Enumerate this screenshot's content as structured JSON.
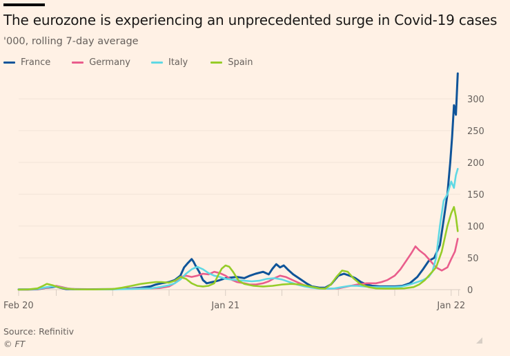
{
  "header": {
    "title": "The eurozone is experiencing an unprecedented surge in Covid-19 cases",
    "subtitle": "'000, rolling 7-day average"
  },
  "footer": {
    "source": "Source: Refinitiv",
    "copyright": "© FT"
  },
  "icons": {
    "resize": "resize-handle-icon"
  },
  "chart_data": {
    "type": "line",
    "title": "The eurozone is experiencing an unprecedented surge in Covid-19 cases",
    "subtitle": "'000, rolling 7-day average",
    "xlabel": "",
    "ylabel": "'000, rolling 7-day average",
    "x_unit": "months since 1 Feb 2020",
    "xlim": [
      0,
      23.4
    ],
    "ylim": [
      0,
      340
    ],
    "y_ticks": [
      0,
      50,
      100,
      150,
      200,
      250,
      300
    ],
    "y_axis_side": "right",
    "grid": true,
    "x_ticks": [
      0,
      2,
      5,
      8,
      11,
      14,
      17,
      20,
      23
    ],
    "x_tick_labels": [
      {
        "at": 0,
        "label": "Feb 20"
      },
      {
        "at": 11,
        "label": "Jan 21"
      },
      {
        "at": 23,
        "label": "Jan 22"
      }
    ],
    "legend_position": "top-left",
    "series": [
      {
        "name": "France",
        "color": "#0f5499",
        "x": [
          0,
          0.5,
          1.0,
          1.5,
          1.8,
          2.0,
          2.2,
          2.5,
          3.0,
          4.0,
          5.0,
          6.0,
          6.5,
          7.0,
          7.3,
          7.6,
          8.0,
          8.3,
          8.6,
          8.8,
          9.0,
          9.2,
          9.3,
          9.4,
          9.6,
          9.8,
          10.0,
          10.3,
          10.6,
          11.0,
          11.3,
          11.6,
          12.0,
          12.3,
          12.6,
          13.0,
          13.3,
          13.5,
          13.7,
          13.9,
          14.1,
          14.3,
          14.6,
          15.0,
          15.3,
          15.6,
          16.0,
          16.3,
          16.6,
          17.0,
          17.3,
          17.6,
          17.9,
          18.2,
          18.5,
          18.8,
          19.2,
          19.6,
          20.0,
          20.4,
          20.8,
          21.2,
          21.5,
          21.8,
          22.1,
          22.4,
          22.6,
          22.8,
          22.95,
          23.05,
          23.15,
          23.25,
          23.35
        ],
        "values": [
          0.2,
          0.3,
          0.5,
          3,
          4,
          5,
          3,
          1,
          0.6,
          0.5,
          0.8,
          2,
          3,
          5,
          8,
          10,
          12,
          15,
          22,
          35,
          42,
          48,
          44,
          38,
          28,
          15,
          10,
          12,
          14,
          18,
          19,
          20,
          18,
          22,
          25,
          28,
          24,
          33,
          40,
          35,
          38,
          32,
          24,
          16,
          10,
          5,
          3,
          3,
          8,
          22,
          25,
          22,
          18,
          12,
          8,
          6,
          5,
          5,
          5,
          6,
          10,
          20,
          32,
          45,
          50,
          70,
          110,
          150,
          200,
          240,
          290,
          275,
          340
        ]
      },
      {
        "name": "Germany",
        "color": "#e95d8c",
        "x": [
          0,
          0.5,
          1.0,
          1.5,
          1.8,
          2.0,
          2.3,
          2.6,
          3.0,
          4.0,
          5.0,
          6.0,
          7.0,
          7.5,
          8.0,
          8.3,
          8.6,
          8.9,
          9.2,
          9.5,
          9.8,
          10.1,
          10.4,
          10.7,
          11.0,
          11.3,
          11.6,
          12.0,
          12.3,
          12.6,
          13.0,
          13.3,
          13.6,
          13.9,
          14.2,
          14.5,
          14.8,
          15.1,
          15.5,
          16.0,
          16.5,
          17.0,
          17.5,
          18.0,
          18.5,
          19.0,
          19.3,
          19.6,
          20.0,
          20.3,
          20.6,
          20.9,
          21.1,
          21.3,
          21.6,
          21.9,
          22.2,
          22.5,
          22.8,
          23.0,
          23.2,
          23.35
        ],
        "values": [
          0.1,
          0.2,
          0.5,
          3,
          5,
          6,
          4,
          2,
          0.8,
          0.5,
          0.8,
          1.5,
          2,
          2.5,
          5,
          10,
          20,
          22,
          20,
          22,
          25,
          24,
          28,
          26,
          22,
          16,
          12,
          10,
          8,
          8,
          10,
          13,
          18,
          22,
          20,
          16,
          12,
          8,
          4,
          2,
          1.5,
          2,
          5,
          8,
          10,
          10,
          12,
          15,
          22,
          32,
          45,
          58,
          68,
          62,
          55,
          45,
          35,
          30,
          35,
          48,
          60,
          80
        ]
      },
      {
        "name": "Italy",
        "color": "#5fd8e4",
        "x": [
          0,
          0.5,
          1.0,
          1.5,
          1.8,
          2.0,
          2.3,
          2.6,
          3.0,
          4.0,
          5.0,
          6.0,
          7.0,
          7.5,
          8.0,
          8.3,
          8.6,
          8.9,
          9.2,
          9.5,
          9.8,
          10.1,
          10.4,
          10.7,
          11.0,
          11.3,
          11.6,
          12.0,
          12.4,
          12.8,
          13.2,
          13.6,
          14.0,
          14.4,
          14.8,
          15.2,
          15.6,
          16.0,
          16.4,
          16.8,
          17.2,
          17.6,
          18.0,
          18.4,
          18.8,
          19.2,
          19.6,
          20.0,
          20.4,
          20.8,
          21.2,
          21.5,
          21.8,
          22.0,
          22.2,
          22.4,
          22.6,
          22.8,
          23.0,
          23.15,
          23.25,
          23.35
        ],
        "values": [
          0.1,
          0.3,
          1,
          4,
          5,
          5,
          3,
          1.5,
          0.5,
          0.3,
          0.4,
          1,
          2,
          4,
          7,
          10,
          16,
          25,
          32,
          36,
          32,
          26,
          22,
          20,
          17,
          16,
          15,
          14,
          13,
          14,
          17,
          18,
          16,
          12,
          8,
          5,
          3,
          1.5,
          1.5,
          2,
          4,
          6,
          6,
          5,
          4,
          4,
          4,
          4,
          5,
          8,
          12,
          15,
          20,
          28,
          50,
          100,
          140,
          150,
          170,
          160,
          180,
          190
        ]
      },
      {
        "name": "Spain",
        "color": "#96cc28",
        "x": [
          0,
          0.5,
          1.0,
          1.3,
          1.5,
          1.8,
          2.1,
          2.5,
          3.0,
          4.0,
          5.0,
          5.5,
          6.0,
          6.5,
          7.0,
          7.3,
          7.6,
          8.0,
          8.3,
          8.6,
          8.9,
          9.2,
          9.5,
          9.8,
          10.1,
          10.4,
          10.6,
          10.8,
          11.0,
          11.2,
          11.4,
          11.7,
          12.0,
          12.5,
          13.0,
          13.5,
          14.0,
          14.5,
          15.0,
          15.5,
          16.0,
          16.3,
          16.6,
          16.9,
          17.2,
          17.5,
          17.8,
          18.2,
          18.6,
          19.0,
          19.5,
          20.0,
          20.5,
          21.0,
          21.3,
          21.6,
          21.9,
          22.2,
          22.5,
          22.8,
          23.0,
          23.15,
          23.25,
          23.35
        ],
        "values": [
          0.1,
          0.3,
          2,
          6,
          9,
          7,
          4,
          1.5,
          0.5,
          0.3,
          1,
          3,
          6,
          9,
          11,
          12,
          12,
          11,
          14,
          20,
          17,
          10,
          6,
          5,
          6,
          10,
          22,
          33,
          38,
          36,
          28,
          14,
          9,
          6,
          5,
          6,
          8,
          9,
          8,
          5,
          2,
          1.5,
          8,
          20,
          30,
          28,
          18,
          8,
          4,
          2,
          1.5,
          1.5,
          2,
          4,
          8,
          15,
          25,
          35,
          60,
          100,
          120,
          130,
          115,
          92
        ]
      }
    ]
  }
}
